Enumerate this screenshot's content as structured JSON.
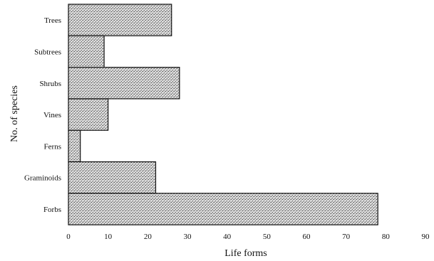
{
  "chart_data": {
    "type": "bar",
    "orientation": "horizontal",
    "categories": [
      "Trees",
      "Subtrees",
      "Shrubs",
      "Vines",
      "Ferns",
      "Graminoids",
      "Forbs"
    ],
    "values": [
      26,
      9,
      28,
      10,
      3,
      22,
      78
    ],
    "xlabel": "Life forms",
    "ylabel": "No. of species",
    "xlim": [
      0,
      90
    ],
    "xticks": [
      "0",
      "10",
      "20",
      "30",
      "40",
      "50",
      "60",
      "70",
      "80",
      "90"
    ],
    "grid": false,
    "legend": "none",
    "colors": {
      "bar_fill": "#cfcfcf",
      "bar_edge": "#111111",
      "stipple": "#555555"
    }
  }
}
